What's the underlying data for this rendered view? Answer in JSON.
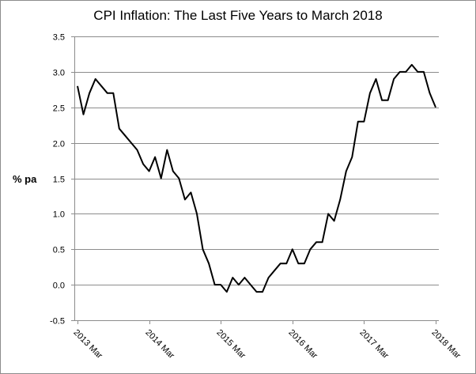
{
  "chart_data": {
    "type": "line",
    "title": "CPI Inflation: The Last Five Years to March 2018",
    "xlabel": "",
    "ylabel": "% pa",
    "ylim": [
      -0.5,
      3.5
    ],
    "yticks": [
      "3.5",
      "3.0",
      "2.5",
      "2.0",
      "1.5",
      "1.0",
      "0.5",
      "0.0",
      "-0.5"
    ],
    "xtick_labels": [
      "2013 Mar",
      "2014 Mar",
      "2015 Mar",
      "2016 Mar",
      "2017 Mar",
      "2018 Mar"
    ],
    "grid": true,
    "line_color": "#000000",
    "series": [
      {
        "x": [
          "2013-03",
          "2013-04",
          "2013-05",
          "2013-06",
          "2013-07",
          "2013-08",
          "2013-09",
          "2013-10",
          "2013-11",
          "2013-12",
          "2014-01",
          "2014-02",
          "2014-03",
          "2014-04",
          "2014-05",
          "2014-06",
          "2014-07",
          "2014-08",
          "2014-09",
          "2014-10",
          "2014-11",
          "2014-12",
          "2015-01",
          "2015-02",
          "2015-03",
          "2015-04",
          "2015-05",
          "2015-06",
          "2015-07",
          "2015-08",
          "2015-09",
          "2015-10",
          "2015-11",
          "2015-12",
          "2016-01",
          "2016-02",
          "2016-03",
          "2016-04",
          "2016-05",
          "2016-06",
          "2016-07",
          "2016-08",
          "2016-09",
          "2016-10",
          "2016-11",
          "2016-12",
          "2017-01",
          "2017-02",
          "2017-03",
          "2017-04",
          "2017-05",
          "2017-06",
          "2017-07",
          "2017-08",
          "2017-09",
          "2017-10",
          "2017-11",
          "2017-12",
          "2018-01",
          "2018-02",
          "2018-03"
        ],
        "values": [
          2.8,
          2.4,
          2.7,
          2.9,
          2.8,
          2.7,
          2.7,
          2.2,
          2.1,
          2.0,
          1.9,
          1.7,
          1.6,
          1.8,
          1.5,
          1.9,
          1.6,
          1.5,
          1.2,
          1.3,
          1.0,
          0.5,
          0.3,
          0.0,
          0.0,
          -0.1,
          0.1,
          0.0,
          0.1,
          0.0,
          -0.1,
          -0.1,
          0.1,
          0.2,
          0.3,
          0.3,
          0.5,
          0.3,
          0.3,
          0.5,
          0.6,
          0.6,
          1.0,
          0.9,
          1.2,
          1.6,
          1.8,
          2.3,
          2.3,
          2.7,
          2.9,
          2.6,
          2.6,
          2.9,
          3.0,
          3.0,
          3.1,
          3.0,
          3.0,
          2.7,
          2.5
        ]
      }
    ]
  }
}
